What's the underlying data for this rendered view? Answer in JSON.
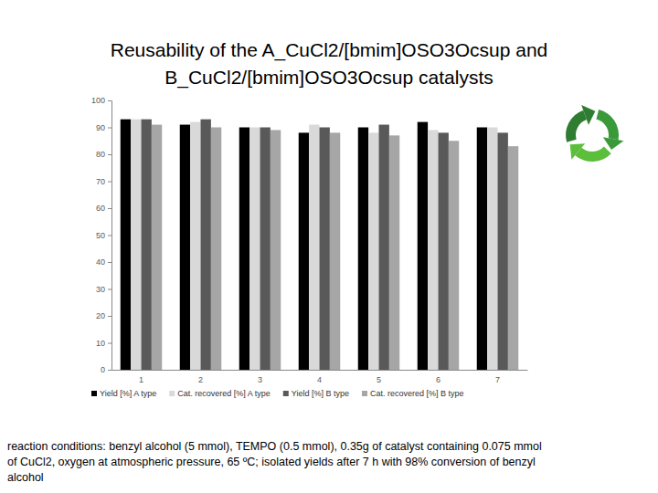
{
  "chart_data": {
    "type": "bar",
    "title": [
      "Reusability of the A_CuCl2/[bmim]OSO3Ocsup and",
      "B_CuCl2/[bmim]OSO3Ocsup catalysts"
    ],
    "annotation": [
      "reaction conditions: benzyl alcohol (5 mmol), TEMPO (0.5 mmol), 0.35g of catalyst containing 0.075 mmol",
      "of CuCl2, oxygen at atmospheric pressure, 65 ºC; isolated yields after 7 h with 98% conversion of benzyl",
      "alcohol"
    ],
    "categories": [
      "1",
      "2",
      "3",
      "4",
      "5",
      "6",
      "7"
    ],
    "series": [
      {
        "name": "Yield [%] A type",
        "color": "#000000",
        "values": [
          93,
          91,
          90,
          88,
          90,
          92,
          90
        ]
      },
      {
        "name": "Cat. recovered [%] A type",
        "color": "#d9d9d9",
        "values": [
          93,
          92,
          90,
          91,
          88,
          89,
          90
        ]
      },
      {
        "name": "Yield [%] B type",
        "color": "#595959",
        "values": [
          93,
          93,
          90,
          90,
          91,
          88,
          88
        ]
      },
      {
        "name": "Cat. recovered [%] B type",
        "color": "#a6a6a6",
        "values": [
          91,
          90,
          89,
          88,
          87,
          85,
          83
        ]
      }
    ],
    "ylim": [
      0,
      100
    ],
    "yticks": [
      0,
      10,
      20,
      30,
      40,
      50,
      60,
      70,
      80,
      90,
      100
    ],
    "grid": false,
    "legend": "bottom"
  }
}
